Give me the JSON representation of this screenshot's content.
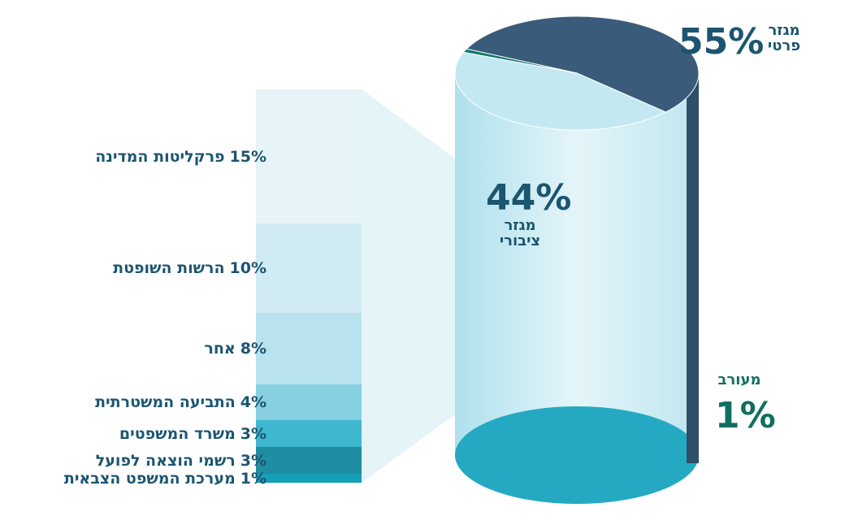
{
  "chart_data": {
    "type": "pie",
    "categories": [
      "מגזר פרטי",
      "מגזר ציבורי",
      "מעורב"
    ],
    "values": [
      55,
      44,
      1
    ],
    "value_labels": [
      "55%",
      "44%",
      "1%"
    ],
    "colors": [
      "#3b5b7a",
      "#c4e8f1",
      "#0f7a6a"
    ],
    "breakdown": {
      "type": "bar",
      "categories": [
        "פרקליטות המדינה",
        "הרשות השופטת",
        "אחר",
        "התביעה המשטרתית",
        "משרד המשפטים",
        "רשמי הוצאה לפועל",
        "מערכת המשפט הצבאית"
      ],
      "values": [
        15,
        10,
        8,
        4,
        3,
        3,
        1
      ],
      "value_labels": [
        "15%",
        "10%",
        "8%",
        "4%",
        "3%",
        "3%",
        "1%"
      ],
      "colors": [
        "#e6f4f8",
        "#d0ebf3",
        "#b8e2ee",
        "#86d0e1",
        "#3fb7cf",
        "#1f8ea2",
        "#14a0b6"
      ]
    }
  }
}
